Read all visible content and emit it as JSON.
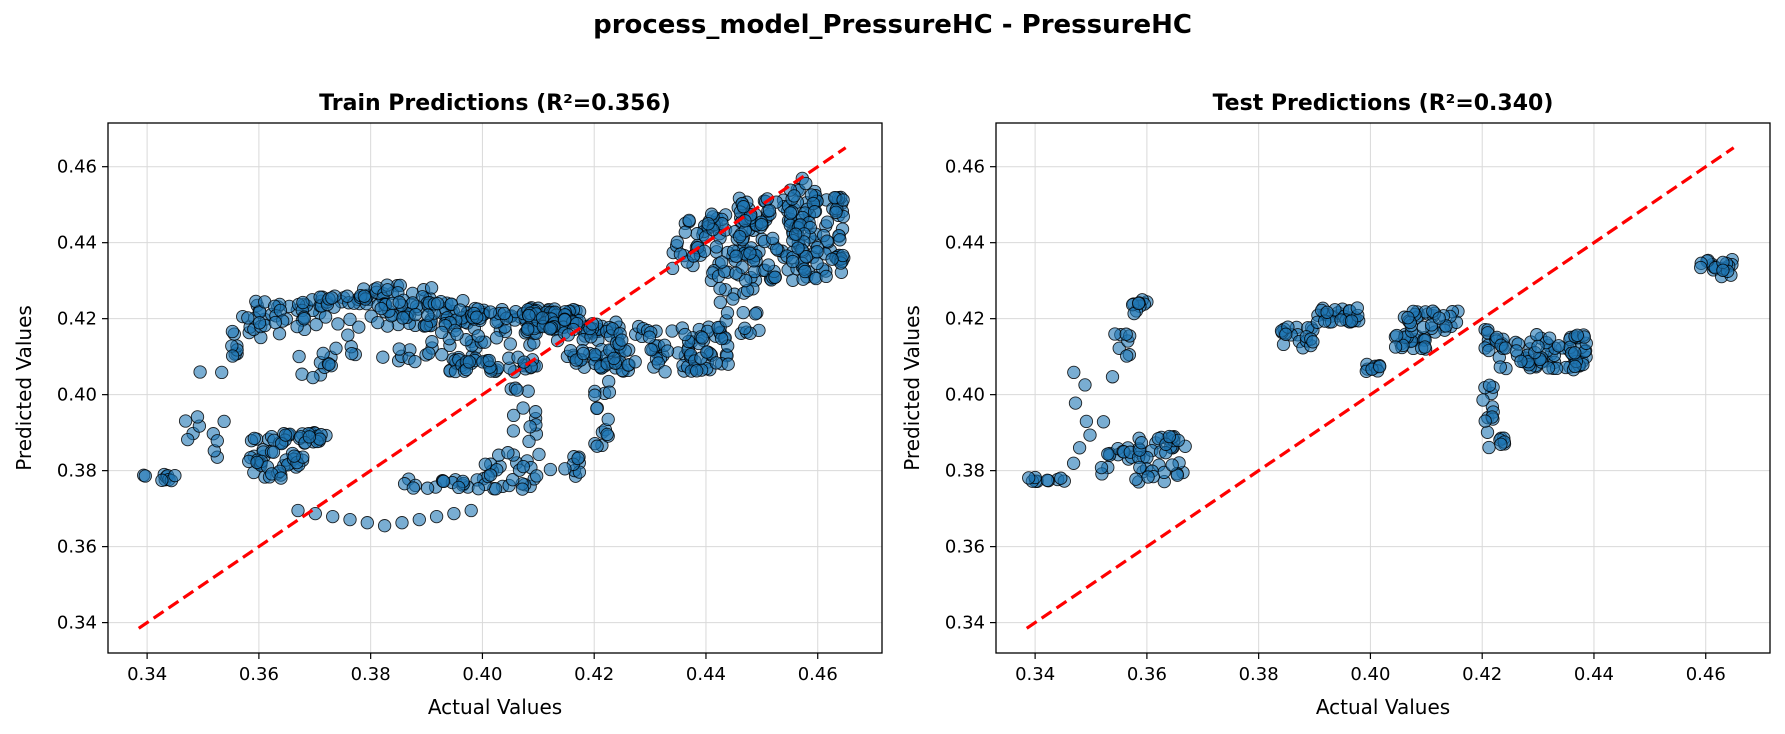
{
  "figure": {
    "suptitle": "process_model_PressureHC - PressureHC"
  },
  "colors": {
    "point_fill": "#1f77b4",
    "point_edge": "#000000",
    "ideal_line": "#ff0000",
    "grid": "#d9d9d9"
  },
  "chart_data": [
    {
      "type": "scatter",
      "title": "Train Predictions (R²=0.356)",
      "xlabel": "Actual Values",
      "ylabel": "Predicted Values",
      "xlim": [
        0.333,
        0.4715
      ],
      "ylim": [
        0.332,
        0.4715
      ],
      "xticks": [
        "0.34",
        "0.36",
        "0.38",
        "0.40",
        "0.42",
        "0.44",
        "0.46"
      ],
      "yticks": [
        "0.34",
        "0.36",
        "0.38",
        "0.40",
        "0.42",
        "0.44",
        "0.46"
      ],
      "grid": true,
      "reference_line": {
        "style": "dashed",
        "x": [
          0.3385,
          0.465
        ],
        "y": [
          0.3385,
          0.465
        ]
      },
      "clusters": [
        {
          "x": [
            0.338,
            0.346
          ],
          "y": [
            0.377,
            0.379
          ],
          "n": 10
        },
        {
          "x": [
            0.346,
            0.354
          ],
          "y": [
            0.378,
            0.41
          ],
          "n": 12
        },
        {
          "x": [
            0.354,
            0.357
          ],
          "y": [
            0.41,
            0.417
          ],
          "n": 8
        },
        {
          "x": [
            0.357,
            0.362
          ],
          "y": [
            0.415,
            0.425
          ],
          "n": 12
        },
        {
          "x": [
            0.36,
            0.372
          ],
          "y": [
            0.416,
            0.425
          ],
          "n": 30
        },
        {
          "x": [
            0.37,
            0.38
          ],
          "y": [
            0.423,
            0.426
          ],
          "n": 20
        },
        {
          "x": [
            0.358,
            0.362
          ],
          "y": [
            0.378,
            0.389
          ],
          "n": 20
        },
        {
          "x": [
            0.362,
            0.373
          ],
          "y": [
            0.387,
            0.39
          ],
          "n": 30
        },
        {
          "x": [
            0.362,
            0.368
          ],
          "y": [
            0.378,
            0.385
          ],
          "n": 20
        },
        {
          "x": [
            0.367,
            0.373
          ],
          "y": [
            0.404,
            0.413
          ],
          "n": 10
        },
        {
          "x": [
            0.37,
            0.38
          ],
          "y": [
            0.41,
            0.42
          ],
          "n": 10
        },
        {
          "x": [
            0.378,
            0.392
          ],
          "y": [
            0.425,
            0.429
          ],
          "n": 25
        },
        {
          "x": [
            0.38,
            0.398
          ],
          "y": [
            0.418,
            0.425
          ],
          "n": 70
        },
        {
          "x": [
            0.382,
            0.4
          ],
          "y": [
            0.408,
            0.414
          ],
          "n": 20
        },
        {
          "x": [
            0.39,
            0.41
          ],
          "y": [
            0.413,
            0.418
          ],
          "n": 20
        },
        {
          "x": [
            0.398,
            0.418
          ],
          "y": [
            0.419,
            0.423
          ],
          "n": 70
        },
        {
          "x": [
            0.394,
            0.41
          ],
          "y": [
            0.406,
            0.41
          ],
          "n": 40
        },
        {
          "x": [
            0.408,
            0.415
          ],
          "y": [
            0.417,
            0.422
          ],
          "n": 40
        },
        {
          "x": [
            0.412,
            0.425
          ],
          "y": [
            0.414,
            0.42
          ],
          "n": 40
        },
        {
          "x": [
            0.405,
            0.41
          ],
          "y": [
            0.382,
            0.405
          ],
          "n": 15
        },
        {
          "x": [
            0.386,
            0.41
          ],
          "y": [
            0.375,
            0.378
          ],
          "n": 30
        },
        {
          "x": [
            0.4,
            0.418
          ],
          "y": [
            0.378,
            0.385
          ],
          "n": 25
        },
        {
          "x": [
            0.415,
            0.425
          ],
          "y": [
            0.407,
            0.412
          ],
          "n": 30
        },
        {
          "x": [
            0.42,
            0.423
          ],
          "y": [
            0.386,
            0.405
          ],
          "n": 15
        },
        {
          "x": [
            0.422,
            0.444
          ],
          "y": [
            0.406,
            0.418
          ],
          "n": 90
        },
        {
          "x": [
            0.434,
            0.442
          ],
          "y": [
            0.433,
            0.447
          ],
          "n": 30
        },
        {
          "x": [
            0.44,
            0.449
          ],
          "y": [
            0.43,
            0.45
          ],
          "n": 40
        },
        {
          "x": [
            0.441,
            0.45
          ],
          "y": [
            0.416,
            0.428
          ],
          "n": 20
        },
        {
          "x": [
            0.445,
            0.465
          ],
          "y": [
            0.43,
            0.452
          ],
          "n": 120
        },
        {
          "x": [
            0.455,
            0.46
          ],
          "y": [
            0.432,
            0.457
          ],
          "n": 40
        },
        {
          "x": [
            0.446,
            0.452
          ],
          "y": [
            0.44,
            0.452
          ],
          "n": 20
        },
        {
          "x": [
            0.462,
            0.465
          ],
          "y": [
            0.434,
            0.437
          ],
          "n": 10
        },
        {
          "x": [
            0.463,
            0.465
          ],
          "y": [
            0.45,
            0.453
          ],
          "n": 5
        },
        {
          "x": [
            0.367,
            0.398
          ],
          "y": [
            0.365,
            0.37
          ],
          "n": 11,
          "order": "arc"
        }
      ]
    },
    {
      "type": "scatter",
      "title": "Test Predictions (R²=0.340)",
      "xlabel": "Actual Values",
      "ylabel": "Predicted Values",
      "xlim": [
        0.333,
        0.4715
      ],
      "ylim": [
        0.332,
        0.4715
      ],
      "xticks": [
        "0.34",
        "0.36",
        "0.38",
        "0.40",
        "0.42",
        "0.44",
        "0.46"
      ],
      "yticks": [
        "0.34",
        "0.36",
        "0.38",
        "0.40",
        "0.42",
        "0.44",
        "0.46"
      ],
      "grid": true,
      "reference_line": {
        "style": "dashed",
        "x": [
          0.3385,
          0.465
        ],
        "y": [
          0.3385,
          0.465
        ]
      },
      "clusters": [
        {
          "x": [
            0.338,
            0.346
          ],
          "y": [
            0.377,
            0.379
          ],
          "n": 10
        },
        {
          "x": [
            0.346,
            0.354
          ],
          "y": [
            0.378,
            0.41
          ],
          "n": 12
        },
        {
          "x": [
            0.354,
            0.357
          ],
          "y": [
            0.41,
            0.417
          ],
          "n": 8
        },
        {
          "x": [
            0.357,
            0.361
          ],
          "y": [
            0.421,
            0.425
          ],
          "n": 10
        },
        {
          "x": [
            0.353,
            0.36
          ],
          "y": [
            0.383,
            0.386
          ],
          "n": 12
        },
        {
          "x": [
            0.358,
            0.367
          ],
          "y": [
            0.377,
            0.389
          ],
          "n": 40
        },
        {
          "x": [
            0.384,
            0.39
          ],
          "y": [
            0.412,
            0.418
          ],
          "n": 20
        },
        {
          "x": [
            0.39,
            0.398
          ],
          "y": [
            0.419,
            0.423
          ],
          "n": 30
        },
        {
          "x": [
            0.399,
            0.402
          ],
          "y": [
            0.406,
            0.408
          ],
          "n": 10
        },
        {
          "x": [
            0.404,
            0.41
          ],
          "y": [
            0.412,
            0.416
          ],
          "n": 20
        },
        {
          "x": [
            0.406,
            0.416
          ],
          "y": [
            0.416,
            0.422
          ],
          "n": 30
        },
        {
          "x": [
            0.42,
            0.422
          ],
          "y": [
            0.386,
            0.418
          ],
          "n": 20
        },
        {
          "x": [
            0.421,
            0.424
          ],
          "y": [
            0.386,
            0.389
          ],
          "n": 6
        },
        {
          "x": [
            0.422,
            0.439
          ],
          "y": [
            0.406,
            0.416
          ],
          "n": 80
        },
        {
          "x": [
            0.459,
            0.465
          ],
          "y": [
            0.431,
            0.436
          ],
          "n": 20
        }
      ]
    }
  ]
}
